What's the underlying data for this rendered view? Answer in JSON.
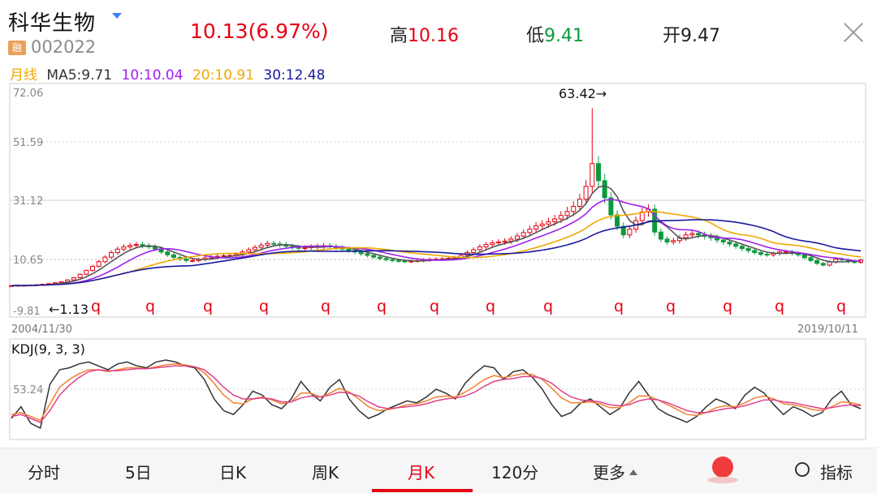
{
  "header": {
    "stock_name": "科华生物",
    "rong_badge": "融",
    "stock_code": "002022",
    "price_change": "10.13(6.97%)",
    "high_label": "高",
    "high_value": "10.16",
    "low_label": "低",
    "low_value": "9.41",
    "open_label": "开",
    "open_value": "9.47"
  },
  "ma_legend": {
    "period": "月线",
    "ma5": "MA5:9.71",
    "ma10": "10:10.04",
    "ma20": "20:10.91",
    "ma30": "30:12.48"
  },
  "colors": {
    "red": "#e60012",
    "green": "#0a9a3c",
    "ma5": "#555555",
    "ma10": "#a020f0",
    "ma20": "#f0a800",
    "ma30": "#1a1aa0",
    "kdj_k": "#333333",
    "kdj_d": "#f08030",
    "kdj_j": "#e0408a"
  },
  "chart_data": [
    {
      "type": "candlestick",
      "y_ticks": [
        "72.06",
        "51.59",
        "31.12",
        "10.65",
        "-9.81"
      ],
      "ylim": [
        -9.81,
        72.06
      ],
      "x_start_label": "2004/11/30",
      "x_end_label": "2019/10/11",
      "max_annotation": "63.42→",
      "min_annotation": "←1.13",
      "event_marker": "q",
      "event_marker_count": 14,
      "closes": [
        1.2,
        1.3,
        1.3,
        1.4,
        1.5,
        1.7,
        1.9,
        2.2,
        2.6,
        3.2,
        4.0,
        5.2,
        6.5,
        8.0,
        9.6,
        11.2,
        12.8,
        14.0,
        14.8,
        15.3,
        15.6,
        15.2,
        14.8,
        14.1,
        13.0,
        12.0,
        11.1,
        10.5,
        10.0,
        10.0,
        10.4,
        10.9,
        11.3,
        11.5,
        11.7,
        11.8,
        12.2,
        13.0,
        13.8,
        14.6,
        15.4,
        16.0,
        15.8,
        15.5,
        15.0,
        14.6,
        14.3,
        14.5,
        14.8,
        15.0,
        15.2,
        14.9,
        14.5,
        14.0,
        13.5,
        13.0,
        12.4,
        11.8,
        11.2,
        10.7,
        10.3,
        10.0,
        9.8,
        9.7,
        9.8,
        10.0,
        10.2,
        10.4,
        10.5,
        10.6,
        10.8,
        11.0,
        11.8,
        12.8,
        13.8,
        14.8,
        15.6,
        16.2,
        16.5,
        16.8,
        17.5,
        18.6,
        19.8,
        21.0,
        22.2,
        22.8,
        23.6,
        24.6,
        25.8,
        27.2,
        29.0,
        31.5,
        36.0,
        44.0,
        38.0,
        32.0,
        26.0,
        22.0,
        19.0,
        21.0,
        24.0,
        27.0,
        28.0,
        20.0,
        17.5,
        16.5,
        17.0,
        18.0,
        19.0,
        19.5,
        19.0,
        18.5,
        18.0,
        17.2,
        16.5,
        15.8,
        15.0,
        14.2,
        13.5,
        12.8,
        12.2,
        12.0,
        12.5,
        13.0,
        13.0,
        12.5,
        12.0,
        11.0,
        10.0,
        9.0,
        8.4,
        9.5,
        10.5,
        10.2,
        9.6,
        9.4,
        10.13
      ]
    },
    {
      "type": "line",
      "title": "KDJ(9, 3, 3)",
      "y_tick": "53.24",
      "series": [
        {
          "name": "K",
          "values": [
            20,
            32,
            15,
            10,
            55,
            70,
            72,
            76,
            78,
            74,
            70,
            76,
            78,
            74,
            72,
            78,
            80,
            78,
            74,
            72,
            60,
            40,
            28,
            24,
            34,
            48,
            44,
            34,
            30,
            40,
            58,
            46,
            38,
            52,
            60,
            40,
            28,
            20,
            24,
            30,
            34,
            38,
            36,
            42,
            50,
            46,
            40,
            56,
            66,
            74,
            72,
            60,
            68,
            70,
            62,
            50,
            34,
            22,
            26,
            36,
            40,
            32,
            24,
            30,
            46,
            58,
            44,
            30,
            24,
            20,
            16,
            22,
            32,
            40,
            36,
            30,
            44,
            52,
            46,
            34,
            24,
            32,
            28,
            22,
            26,
            40,
            48,
            34,
            30
          ]
        },
        {
          "name": "D",
          "values": [
            24,
            26,
            22,
            18,
            35,
            52,
            60,
            66,
            70,
            70,
            68,
            70,
            72,
            72,
            71,
            73,
            75,
            76,
            75,
            73,
            67,
            56,
            44,
            36,
            35,
            40,
            42,
            39,
            35,
            37,
            46,
            46,
            42,
            46,
            51,
            47,
            40,
            32,
            28,
            29,
            31,
            34,
            35,
            38,
            42,
            43,
            42,
            47,
            53,
            60,
            64,
            62,
            64,
            66,
            65,
            60,
            51,
            41,
            36,
            36,
            37,
            35,
            31,
            31,
            36,
            43,
            43,
            39,
            34,
            29,
            24,
            23,
            26,
            31,
            33,
            32,
            36,
            41,
            43,
            40,
            35,
            34,
            32,
            29,
            28,
            32,
            37,
            36,
            34
          ]
        },
        {
          "name": "J",
          "values": [
            22,
            24,
            20,
            16,
            28,
            44,
            54,
            62,
            68,
            70,
            69,
            69,
            70,
            71,
            71,
            72,
            73,
            74,
            74,
            73,
            70,
            62,
            52,
            44,
            40,
            40,
            41,
            40,
            37,
            37,
            41,
            43,
            42,
            44,
            47,
            46,
            43,
            37,
            32,
            30,
            31,
            32,
            33,
            35,
            38,
            40,
            41,
            43,
            47,
            53,
            58,
            60,
            61,
            63,
            63,
            61,
            56,
            48,
            42,
            39,
            38,
            37,
            34,
            33,
            34,
            38,
            40,
            39,
            36,
            32,
            28,
            26,
            26,
            28,
            30,
            31,
            33,
            36,
            39,
            39,
            37,
            36,
            34,
            32,
            30,
            31,
            33,
            34,
            33
          ]
        }
      ]
    }
  ],
  "bottom_tabs": {
    "fenshi": "分时",
    "wuri": "5日",
    "rik": "日K",
    "zhouk": "周K",
    "yuek": "月K",
    "fen120": "120分",
    "more": "更多",
    "indicator": "指标"
  }
}
